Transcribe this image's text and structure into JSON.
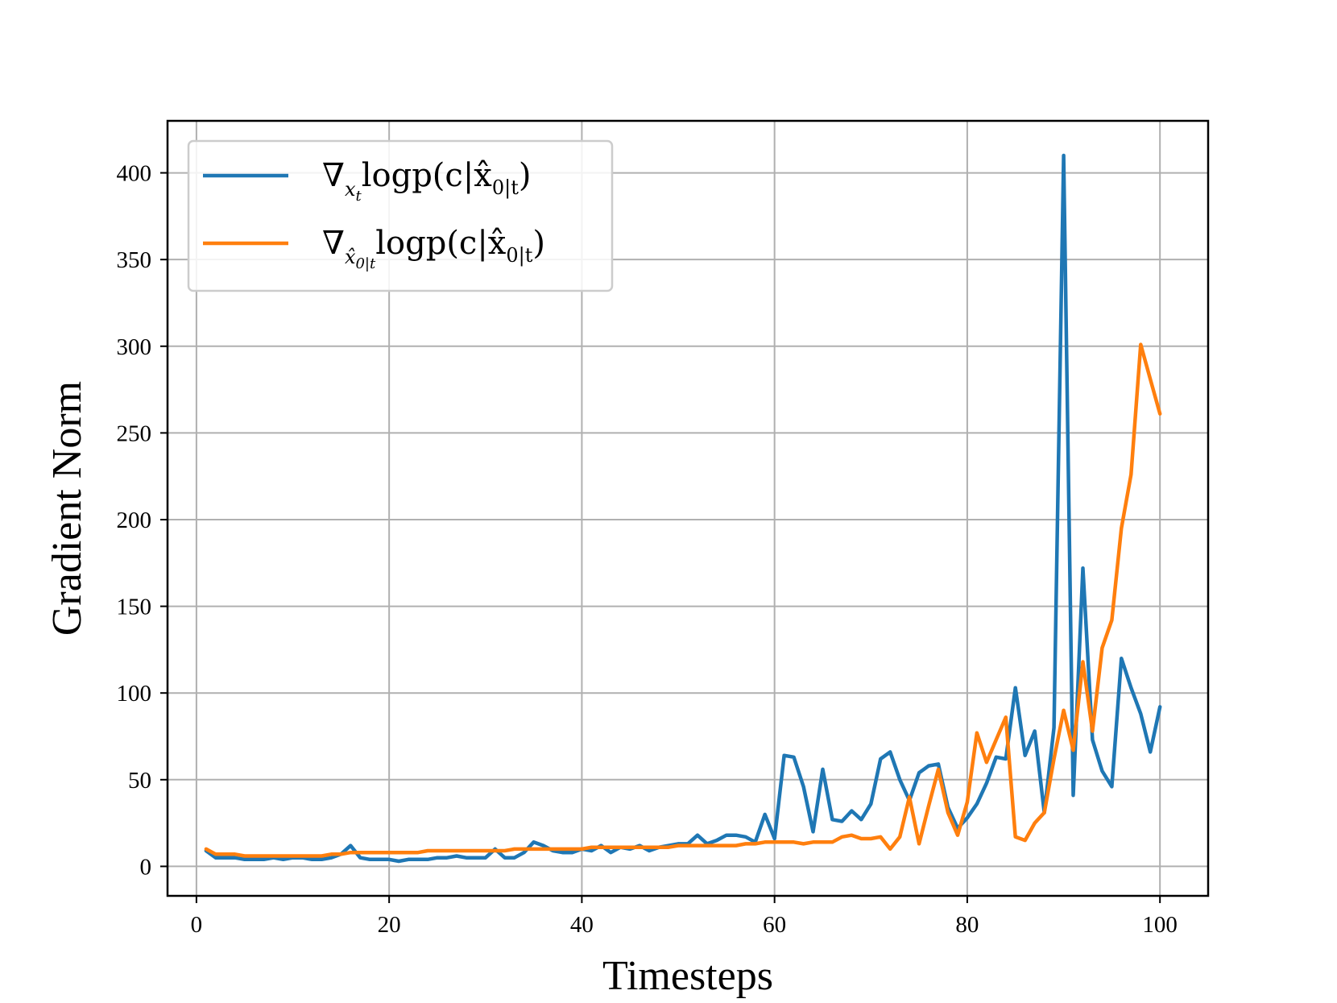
{
  "chart_data": {
    "type": "line",
    "title": "",
    "xlabel": "Timesteps",
    "ylabel": "Gradient Norm",
    "xlim": [
      -3,
      105
    ],
    "ylim": [
      -17,
      430
    ],
    "xticks": [
      0,
      20,
      40,
      60,
      80,
      100
    ],
    "yticks": [
      0,
      50,
      100,
      150,
      200,
      250,
      300,
      350,
      400
    ],
    "xtick_labels": [
      "0",
      "20",
      "40",
      "60",
      "80",
      "100"
    ],
    "ytick_labels": [
      "0",
      "50",
      "100",
      "150",
      "200",
      "250",
      "300",
      "350",
      "400"
    ],
    "grid": true,
    "legend_position": "top-left",
    "x": [
      1,
      2,
      3,
      4,
      5,
      6,
      7,
      8,
      9,
      10,
      11,
      12,
      13,
      14,
      15,
      16,
      17,
      18,
      19,
      20,
      21,
      22,
      23,
      24,
      25,
      26,
      27,
      28,
      29,
      30,
      31,
      32,
      33,
      34,
      35,
      36,
      37,
      38,
      39,
      40,
      41,
      42,
      43,
      44,
      45,
      46,
      47,
      48,
      49,
      50,
      51,
      52,
      53,
      54,
      55,
      56,
      57,
      58,
      59,
      60,
      61,
      62,
      63,
      64,
      65,
      66,
      67,
      68,
      69,
      70,
      71,
      72,
      73,
      74,
      75,
      76,
      77,
      78,
      79,
      80,
      81,
      82,
      83,
      84,
      85,
      86,
      87,
      88,
      89,
      90,
      91,
      92,
      93,
      94,
      95,
      96,
      97,
      98,
      99,
      100
    ],
    "series": [
      {
        "name": "∇xt logp(c|x̂0|t)",
        "legend": {
          "base": "∇",
          "sub": "x",
          "subsub": "t",
          "expr": "logp(c|x̂",
          "exprsub": "0|t",
          "close": ")"
        },
        "color": "#1f77b4",
        "values": [
          9,
          5,
          5,
          5,
          4,
          4,
          4,
          5,
          4,
          5,
          5,
          4,
          4,
          5,
          7,
          12,
          5,
          4,
          4,
          4,
          3,
          4,
          4,
          4,
          5,
          5,
          6,
          5,
          5,
          5,
          10,
          5,
          5,
          8,
          14,
          12,
          9,
          8,
          8,
          10,
          9,
          12,
          8,
          11,
          10,
          12,
          9,
          11,
          12,
          13,
          13,
          18,
          13,
          15,
          18,
          18,
          17,
          14,
          30,
          16,
          64,
          63,
          46,
          20,
          56,
          27,
          26,
          32,
          27,
          36,
          62,
          66,
          50,
          38,
          54,
          58,
          59,
          34,
          22,
          28,
          36,
          48,
          63,
          62,
          103,
          64,
          78,
          31,
          80,
          410,
          41,
          172,
          73,
          55,
          46,
          120,
          103,
          88,
          66,
          92
        ]
      },
      {
        "name": "∇x̂0|t logp(c|x̂0|t)",
        "legend": {
          "base": "∇",
          "sub": "x̂",
          "subsub": "0|t",
          "expr": "logp(c|x̂",
          "exprsub": "0|t",
          "close": ")"
        },
        "color": "#ff7f0e",
        "values": [
          10,
          7,
          7,
          7,
          6,
          6,
          6,
          6,
          6,
          6,
          6,
          6,
          6,
          7,
          7,
          8,
          8,
          8,
          8,
          8,
          8,
          8,
          8,
          9,
          9,
          9,
          9,
          9,
          9,
          9,
          9,
          9,
          10,
          10,
          10,
          10,
          10,
          10,
          10,
          10,
          11,
          11,
          11,
          11,
          11,
          11,
          11,
          11,
          11,
          12,
          12,
          12,
          12,
          12,
          12,
          12,
          13,
          13,
          14,
          14,
          14,
          14,
          13,
          14,
          14,
          14,
          17,
          18,
          16,
          16,
          17,
          10,
          17,
          40,
          13,
          35,
          56,
          31,
          18,
          37,
          77,
          60,
          73,
          86,
          17,
          15,
          25,
          31,
          62,
          90,
          67,
          118,
          78,
          126,
          142,
          195,
          226,
          301,
          281,
          261
        ]
      }
    ]
  }
}
